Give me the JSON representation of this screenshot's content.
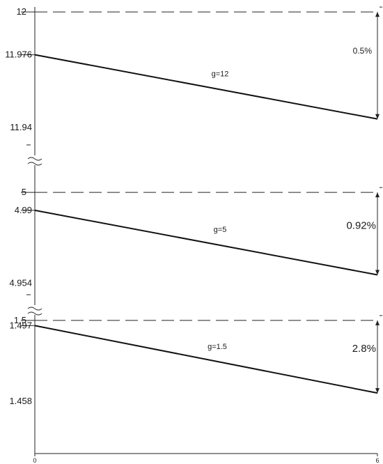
{
  "chart_data": {
    "type": "line",
    "x_ticks": [
      "0",
      "6"
    ],
    "xlim": [
      0,
      6
    ],
    "axis_break_marks": 2,
    "y_tick_labels": [
      "12",
      "11.976",
      "11.94",
      "5",
      "4.99",
      "4.954",
      "1.5",
      "1.497",
      "1.458"
    ],
    "panels": [
      {
        "name": "g=12",
        "reference": 12,
        "reference_label": "12",
        "x": [
          0,
          6
        ],
        "y": [
          11.976,
          11.94
        ],
        "start_label": "11.976",
        "end_label": "11.94",
        "percent_label": "0.5%",
        "ylim": [
          11.92,
          12.002
        ]
      },
      {
        "name": "g=5",
        "reference": 5,
        "reference_label": "5",
        "x": [
          0,
          6
        ],
        "y": [
          4.99,
          4.954
        ],
        "start_label": "4.99",
        "end_label": "4.954",
        "percent_label": "0.92%",
        "ylim": [
          4.934,
          5.016
        ]
      },
      {
        "name": "g=1.5",
        "reference": 1.5,
        "reference_label": "1.5",
        "x": [
          0,
          6
        ],
        "y": [
          1.497,
          1.458
        ],
        "start_label": "1.497",
        "end_label": "1.458",
        "percent_label": "2.8%",
        "ylim": [
          1.423,
          1.504
        ]
      }
    ]
  }
}
